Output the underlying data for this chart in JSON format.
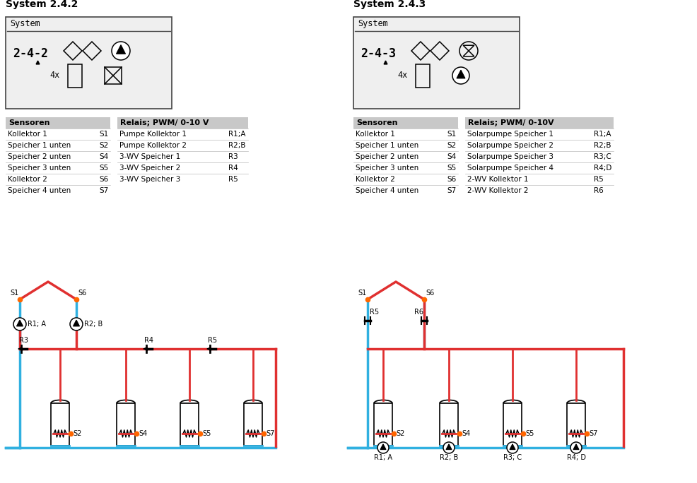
{
  "title1": "System 2.4.2",
  "title2": "System 2.4.3",
  "bg_color": "#ffffff",
  "table_header_color": "#c8c8c8",
  "red": "#e03030",
  "blue": "#30b0e0",
  "orange": "#ff6600",
  "left_sensors_header": "Sensoren",
  "left_relais_header": "Relais; PWM/ 0-10 V",
  "left_sensors": [
    [
      "Kollektor 1",
      "S1"
    ],
    [
      "Speicher 1 unten",
      "S2"
    ],
    [
      "Speicher 2 unten",
      "S4"
    ],
    [
      "Speicher 3 unten",
      "S5"
    ],
    [
      "Kollektor 2",
      "S6"
    ],
    [
      "Speicher 4 unten",
      "S7"
    ]
  ],
  "left_relais": [
    [
      "Pumpe Kollektor 1",
      "R1;A"
    ],
    [
      "Pumpe Kollektor 2",
      "R2;B"
    ],
    [
      "3-WV Speicher 1",
      "R3"
    ],
    [
      "3-WV Speicher 2",
      "R4"
    ],
    [
      "3-WV Speicher 3",
      "R5"
    ]
  ],
  "right_sensors_header": "Sensoren",
  "right_relais_header": "Relais; PWM/ 0-10V",
  "right_sensors": [
    [
      "Kollektor 1",
      "S1"
    ],
    [
      "Speicher 1 unten",
      "S2"
    ],
    [
      "Speicher 2 unten",
      "S4"
    ],
    [
      "Speicher 3 unten",
      "S5"
    ],
    [
      "Kollektor 2",
      "S6"
    ],
    [
      "Speicher 4 unten",
      "S7"
    ]
  ],
  "right_relais": [
    [
      "Solarpumpe Speicher 1",
      "R1;A"
    ],
    [
      "Solarpumpe Speicher 2",
      "R2;B"
    ],
    [
      "Solarpumpe Speicher 3",
      "R3;C"
    ],
    [
      "Solarpumpe Speicher 4",
      "R4;D"
    ],
    [
      "2-WV Kollektor 1",
      "R5"
    ],
    [
      "2-WV Kollektor 2",
      "R6"
    ]
  ],
  "figw": 9.86,
  "figh": 6.84,
  "dpi": 100
}
